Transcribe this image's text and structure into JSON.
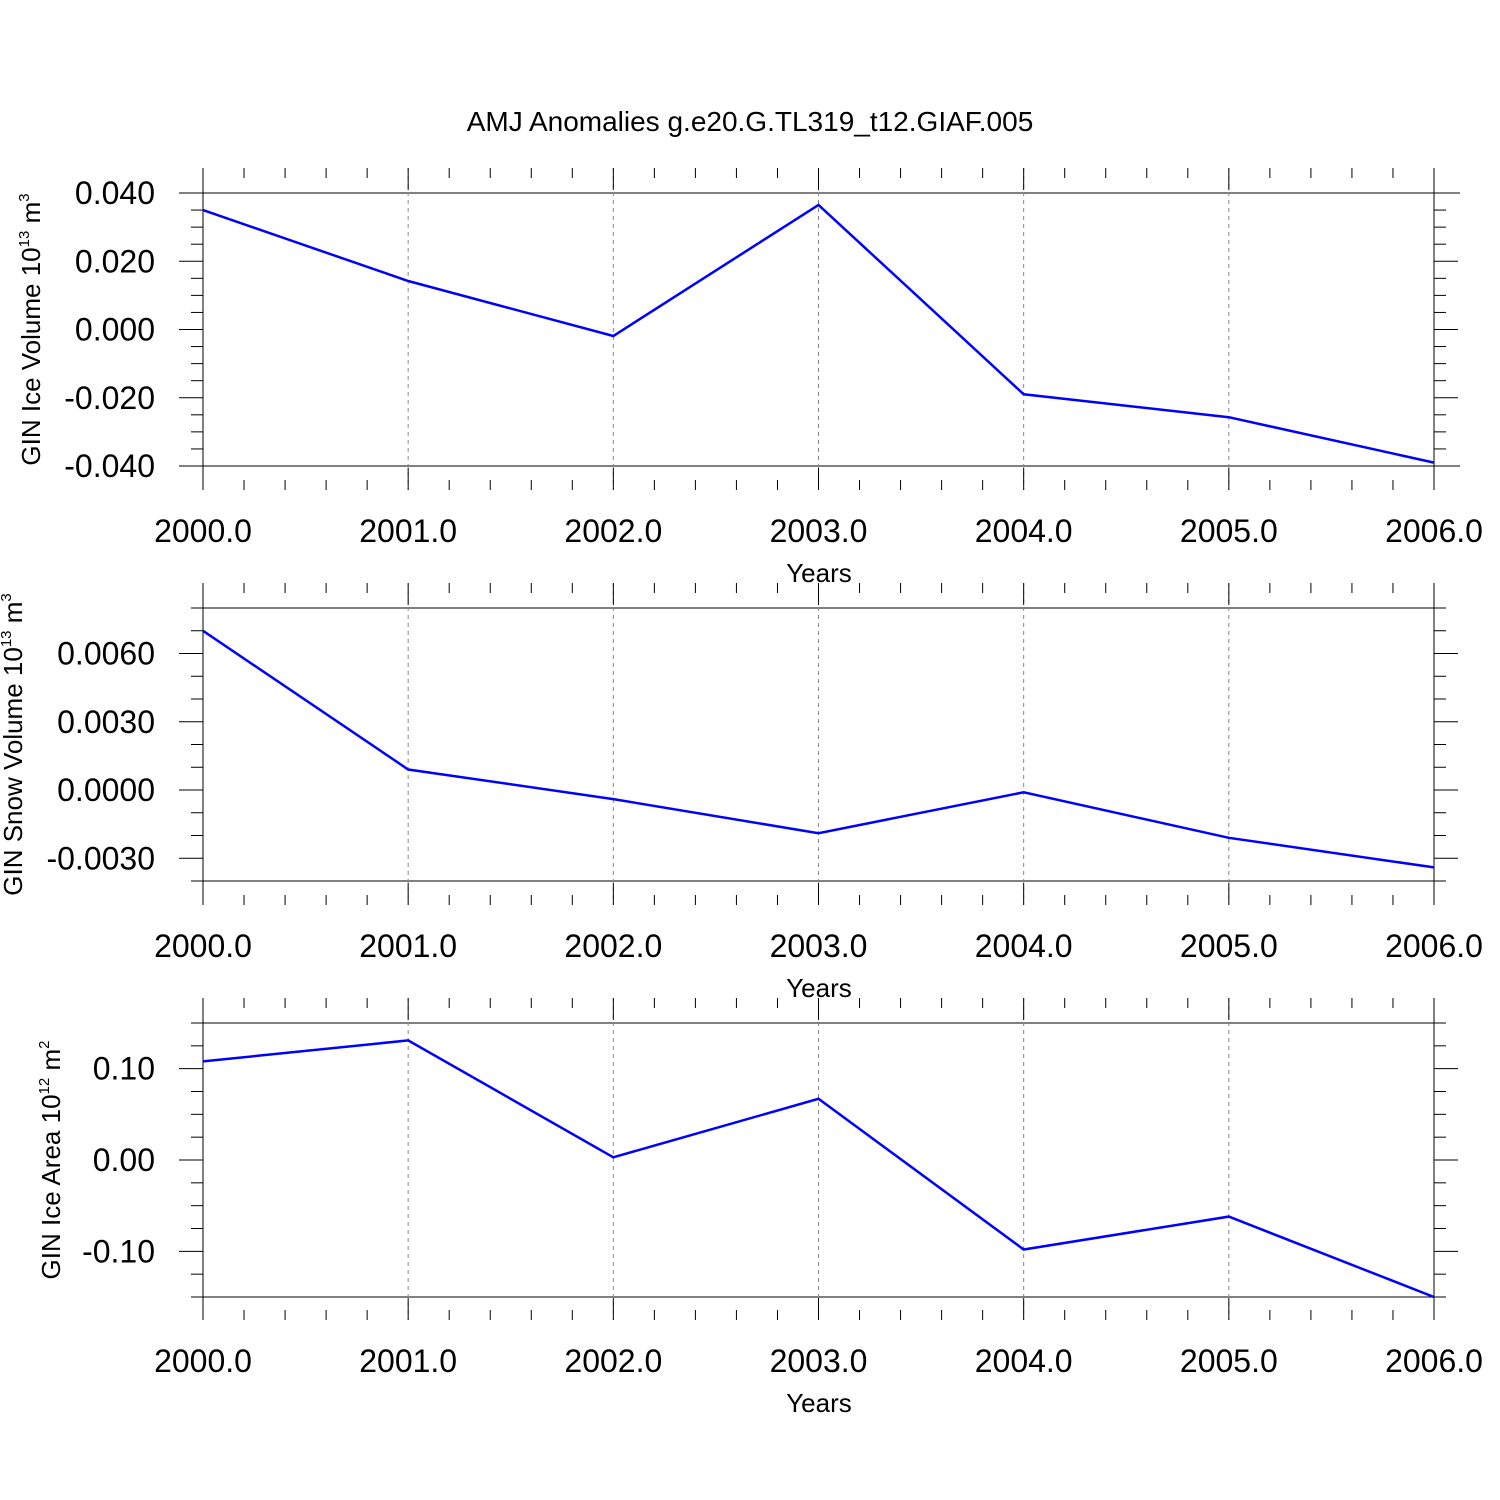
{
  "title": "AMJ Anomalies g.e20.G.TL319_t12.GIAF.005",
  "chart_data": [
    {
      "type": "line",
      "xlabel": "Years",
      "ylabel": {
        "text": "GIN Ice Volume 10",
        "exp": "13",
        "unit": " m",
        "unit_exp": "3"
      },
      "x": [
        2000,
        2001,
        2002,
        2003,
        2004,
        2005,
        2006
      ],
      "x_tick_labels": [
        "2000.0",
        "2001.0",
        "2002.0",
        "2003.0",
        "2004.0",
        "2005.0",
        "2006.0"
      ],
      "xlim": [
        2000,
        2006
      ],
      "ylim": [
        -0.04,
        0.04
      ],
      "y_ticks": [
        0.04,
        0.02,
        0.0,
        -0.02,
        -0.04
      ],
      "y_tick_labels": [
        "0.040",
        "0.020",
        "0.000",
        "-0.020",
        "-0.040"
      ],
      "y_minor_step": 0.005,
      "series": [
        {
          "values": [
            0.035,
            0.0142,
            -0.0019,
            0.0365,
            -0.019,
            -0.0257,
            -0.039
          ],
          "color": "#0000ff"
        }
      ]
    },
    {
      "type": "line",
      "xlabel": "Years",
      "ylabel": {
        "text": "GIN Snow Volume 10",
        "exp": "13",
        "unit": " m",
        "unit_exp": "3"
      },
      "x": [
        2000,
        2001,
        2002,
        2003,
        2004,
        2005,
        2006
      ],
      "x_tick_labels": [
        "2000.0",
        "2001.0",
        "2002.0",
        "2003.0",
        "2004.0",
        "2005.0",
        "2006.0"
      ],
      "xlim": [
        2000,
        2006
      ],
      "ylim": [
        -0.004,
        0.008
      ],
      "y_ticks": [
        0.006,
        0.003,
        0.0,
        -0.003
      ],
      "y_tick_labels": [
        "0.0060",
        "0.0030",
        "0.0000",
        "-0.0030"
      ],
      "y_minor_step": 0.001,
      "series": [
        {
          "values": [
            0.007,
            0.0009,
            -0.0004,
            -0.0019,
            -0.0001,
            -0.0021,
            -0.0034
          ],
          "color": "#0000ff"
        }
      ]
    },
    {
      "type": "line",
      "xlabel": "Years",
      "ylabel": {
        "text": "GIN Ice Area 10",
        "exp": "12",
        "unit": " m",
        "unit_exp": "2"
      },
      "x": [
        2000,
        2001,
        2002,
        2003,
        2004,
        2005,
        2006
      ],
      "x_tick_labels": [
        "2000.0",
        "2001.0",
        "2002.0",
        "2003.0",
        "2004.0",
        "2005.0",
        "2006.0"
      ],
      "xlim": [
        2000,
        2006
      ],
      "ylim": [
        -0.15,
        0.15
      ],
      "y_ticks": [
        0.1,
        0.0,
        -0.1
      ],
      "y_tick_labels": [
        "0.10",
        "0.00",
        "-0.10"
      ],
      "y_minor_step": 0.025,
      "series": [
        {
          "values": [
            0.108,
            0.131,
            0.003,
            0.067,
            -0.098,
            -0.062,
            -0.15
          ],
          "color": "#0000ff"
        }
      ]
    }
  ]
}
